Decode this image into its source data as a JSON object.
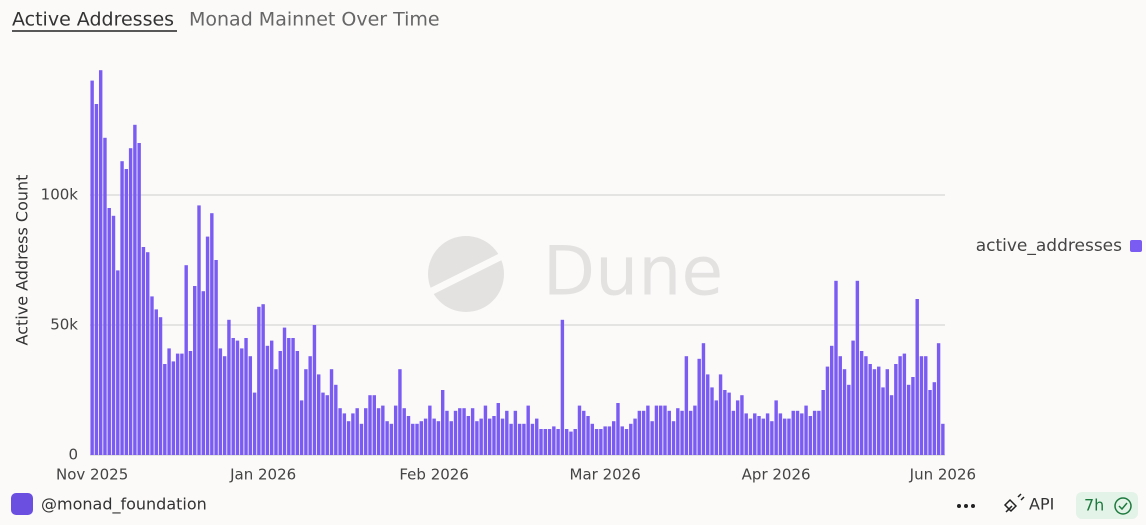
{
  "chart_data": {
    "type": "bar",
    "title": "Active Addresses",
    "subtitle": "Monad Mainnet Over Time",
    "y_label": "Active Address Count",
    "watermark": "Dune",
    "grid": true,
    "legend": "right",
    "ylim": [
      0,
      150000
    ],
    "yticks": [
      0,
      {
        "value": 50000,
        "label": "50k"
      },
      {
        "value": 100000,
        "label": "100k"
      }
    ],
    "xticks": [
      {
        "value": 0,
        "label": "Nov 2025"
      },
      {
        "value": 40,
        "label": "Jan 2026"
      },
      {
        "value": 80,
        "label": "Feb 2026"
      },
      {
        "value": 120,
        "label": "Mar 2026"
      },
      {
        "value": 160,
        "label": "Apr 2026"
      },
      {
        "value": 199,
        "label": "Jun 2026"
      }
    ],
    "series": [
      {
        "name": "active_addresses",
        "color": "#7b5cf3",
        "values": [
          144000,
          135000,
          148000,
          122000,
          95000,
          92000,
          71000,
          113000,
          110000,
          118000,
          127000,
          120000,
          80000,
          78000,
          61000,
          56000,
          53000,
          35000,
          41000,
          36000,
          39000,
          39000,
          73000,
          40000,
          65000,
          96000,
          63000,
          84000,
          93000,
          75000,
          41000,
          38000,
          52000,
          45000,
          44000,
          41000,
          45000,
          38000,
          24000,
          57000,
          58000,
          42000,
          44000,
          33000,
          40000,
          49000,
          45000,
          45000,
          40000,
          21000,
          33000,
          38000,
          50000,
          31000,
          24000,
          23000,
          33000,
          27000,
          18000,
          16000,
          13000,
          16000,
          18000,
          12000,
          18000,
          23000,
          23000,
          18000,
          19000,
          13000,
          12000,
          19000,
          33000,
          18000,
          15000,
          12000,
          12000,
          13000,
          14000,
          19000,
          14000,
          13000,
          25000,
          17000,
          13000,
          17000,
          18000,
          18000,
          15000,
          18000,
          13000,
          14000,
          19000,
          14000,
          15000,
          20000,
          14000,
          17000,
          12000,
          17000,
          12000,
          12000,
          19000,
          12000,
          14000,
          10000,
          10000,
          10000,
          11000,
          10000,
          52000,
          10000,
          9000,
          10000,
          19000,
          17000,
          15000,
          12000,
          10000,
          10000,
          11000,
          11000,
          13000,
          20000,
          11000,
          10000,
          12000,
          14000,
          17000,
          17000,
          19000,
          13000,
          19000,
          19000,
          19000,
          17000,
          13000,
          18000,
          17000,
          38000,
          17000,
          19000,
          37000,
          43000,
          31000,
          26000,
          21000,
          31000,
          25000,
          24000,
          17000,
          21000,
          23000,
          16000,
          14000,
          16000,
          15000,
          14000,
          16000,
          13000,
          21000,
          16000,
          14000,
          14000,
          17000,
          17000,
          16000,
          19000,
          15000,
          17000,
          17000,
          25000,
          34000,
          42000,
          67000,
          38000,
          33000,
          27000,
          44000,
          67000,
          40000,
          38000,
          35000,
          33000,
          34000,
          26000,
          33000,
          23000,
          35000,
          38000,
          39000,
          27000,
          30000,
          60000,
          38000,
          38000,
          25000,
          28000,
          43000,
          12000
        ]
      }
    ]
  },
  "footer": {
    "author": "@monad_foundation",
    "api": "API",
    "age": "7h"
  }
}
